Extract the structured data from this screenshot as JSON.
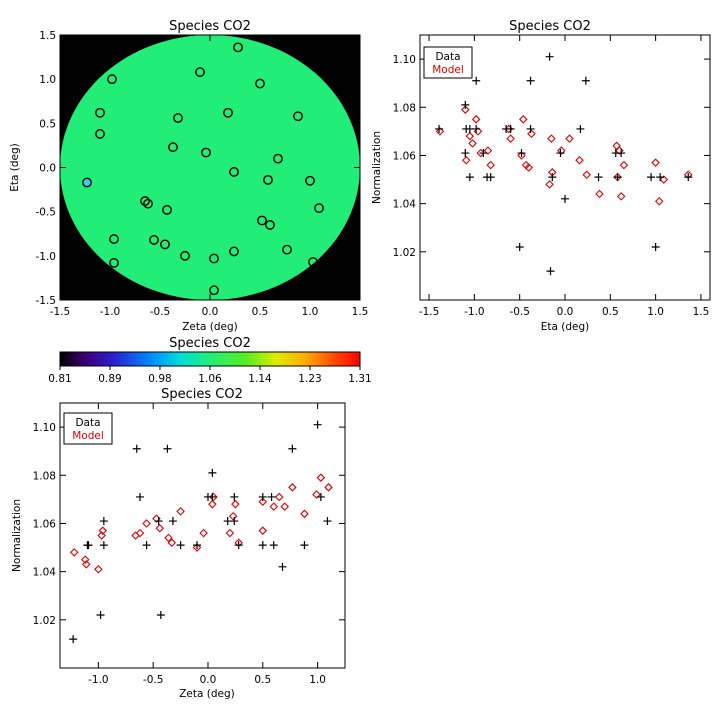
{
  "colors": {
    "data_marker": "#000000",
    "model_marker": "#dd0000",
    "disk_fill": "#22ee77",
    "background_mask": "#000000",
    "axes": "#000000",
    "cold_marker": "#33ccff"
  },
  "map_plot": {
    "title": "Species CO2",
    "xlabel": "Zeta (deg)",
    "ylabel": "Eta (deg)",
    "xlim": [
      -1.5,
      1.5
    ],
    "ylim": [
      -1.5,
      1.5
    ],
    "xticks": [
      "-1.5",
      "-1.0",
      "-0.5",
      "0.0",
      "0.5",
      "1.0",
      "1.5"
    ],
    "yticks": [
      "-1.5",
      "-1.0",
      "-0.5",
      "0.0",
      "0.5",
      "1.0",
      "1.5"
    ],
    "disk_radius_deg": 1.5
  },
  "colorbar": {
    "title": "Species CO2",
    "ticks": [
      "0.81",
      "0.89",
      "0.98",
      "1.06",
      "1.14",
      "1.23",
      "1.31"
    ],
    "range": [
      0.81,
      1.31
    ]
  },
  "legend": {
    "data": "Data",
    "model": "Model"
  },
  "eta_plot": {
    "title": "Species CO2",
    "xlabel": "Eta (deg)",
    "ylabel": "Normalization",
    "xlim": [
      -1.6,
      1.6
    ],
    "ylim": [
      1.0,
      1.11
    ],
    "xticks": [
      "-1.5",
      "-1.0",
      "-0.5",
      "0.0",
      "0.5",
      "1.0",
      "1.5"
    ],
    "yticks": [
      "1.02",
      "1.04",
      "1.06",
      "1.08",
      "1.10"
    ]
  },
  "zeta_plot": {
    "title": "Species CO2",
    "xlabel": "Zeta (deg)",
    "ylabel": "Normalization",
    "xlim": [
      -1.35,
      1.25
    ],
    "ylim": [
      1.0,
      1.11
    ],
    "xticks": [
      "-1.0",
      "-0.5",
      "0.0",
      "0.5",
      "1.0"
    ],
    "yticks": [
      "1.02",
      "1.04",
      "1.06",
      "1.08",
      "1.10"
    ]
  },
  "chart_data": [
    {
      "type": "scatter",
      "title": "Species CO2",
      "xlabel": "Zeta (deg)",
      "ylabel": "Eta (deg)",
      "xlim": [
        -1.5,
        1.5
      ],
      "ylim": [
        -1.5,
        1.5
      ],
      "points": [
        {
          "x": 0.28,
          "y": 1.36,
          "c": 1.06
        },
        {
          "x": -0.1,
          "y": 1.08,
          "c": 1.06
        },
        {
          "x": -0.98,
          "y": 1.0,
          "c": 1.06
        },
        {
          "x": 0.5,
          "y": 0.95,
          "c": 1.06
        },
        {
          "x": -1.1,
          "y": 0.62,
          "c": 1.06
        },
        {
          "x": 0.18,
          "y": 0.62,
          "c": 1.06
        },
        {
          "x": -0.32,
          "y": 0.56,
          "c": 1.06
        },
        {
          "x": 0.88,
          "y": 0.58,
          "c": 1.06
        },
        {
          "x": -1.1,
          "y": 0.38,
          "c": 1.06
        },
        {
          "x": -0.37,
          "y": 0.23,
          "c": 1.06
        },
        {
          "x": -0.04,
          "y": 0.17,
          "c": 1.06
        },
        {
          "x": 0.68,
          "y": 0.1,
          "c": 1.06
        },
        {
          "x": -1.23,
          "y": -0.17,
          "c": 0.98
        },
        {
          "x": 0.24,
          "y": -0.05,
          "c": 1.06
        },
        {
          "x": 0.58,
          "y": -0.14,
          "c": 1.06
        },
        {
          "x": 1.0,
          "y": -0.15,
          "c": 1.06
        },
        {
          "x": -0.65,
          "y": -0.38,
          "c": 1.06
        },
        {
          "x": -0.62,
          "y": -0.41,
          "c": 1.06
        },
        {
          "x": -0.43,
          "y": -0.48,
          "c": 1.06
        },
        {
          "x": 1.09,
          "y": -0.46,
          "c": 1.06
        },
        {
          "x": 0.52,
          "y": -0.6,
          "c": 1.06
        },
        {
          "x": 0.6,
          "y": -0.65,
          "c": 1.06
        },
        {
          "x": -0.96,
          "y": -0.81,
          "c": 1.06
        },
        {
          "x": -0.56,
          "y": -0.82,
          "c": 1.06
        },
        {
          "x": -0.45,
          "y": -0.87,
          "c": 1.06
        },
        {
          "x": 0.24,
          "y": -0.95,
          "c": 1.06
        },
        {
          "x": 0.77,
          "y": -0.93,
          "c": 1.06
        },
        {
          "x": -0.25,
          "y": -1.0,
          "c": 1.06
        },
        {
          "x": 0.04,
          "y": -1.03,
          "c": 1.06
        },
        {
          "x": -0.96,
          "y": -1.08,
          "c": 1.06
        },
        {
          "x": 1.03,
          "y": -1.07,
          "c": 1.06
        },
        {
          "x": 0.04,
          "y": -1.39,
          "c": 1.06
        }
      ]
    },
    {
      "type": "scatter",
      "title": "Species CO2",
      "xlabel": "Eta (deg)",
      "ylabel": "Normalization",
      "xlim": [
        -1.6,
        1.6
      ],
      "ylim": [
        1.0,
        1.11
      ],
      "series": [
        {
          "name": "Data",
          "points": [
            [
              -1.39,
              1.071
            ],
            [
              -1.1,
              1.081
            ],
            [
              -1.09,
              1.071
            ],
            [
              -1.1,
              1.061
            ],
            [
              -1.05,
              1.051
            ],
            [
              -1.05,
              1.071
            ],
            [
              -0.98,
              1.091
            ],
            [
              -0.98,
              1.071
            ],
            [
              -0.9,
              1.061
            ],
            [
              -0.86,
              1.051
            ],
            [
              -0.82,
              1.051
            ],
            [
              -0.65,
              1.071
            ],
            [
              -0.6,
              1.071
            ],
            [
              -0.5,
              1.022
            ],
            [
              -0.48,
              1.061
            ],
            [
              -0.38,
              1.091
            ],
            [
              -0.38,
              1.071
            ],
            [
              -0.17,
              1.101
            ],
            [
              -0.16,
              1.012
            ],
            [
              -0.14,
              1.051
            ],
            [
              -0.05,
              1.061
            ],
            [
              0.0,
              1.042
            ],
            [
              0.17,
              1.071
            ],
            [
              0.23,
              1.091
            ],
            [
              0.37,
              1.051
            ],
            [
              0.56,
              1.061
            ],
            [
              0.62,
              1.061
            ],
            [
              0.58,
              1.051
            ],
            [
              0.95,
              1.051
            ],
            [
              1.0,
              1.022
            ],
            [
              1.05,
              1.051
            ],
            [
              1.36,
              1.051
            ]
          ]
        },
        {
          "name": "Model",
          "points": [
            [
              -1.38,
              1.07
            ],
            [
              -1.1,
              1.079
            ],
            [
              -1.09,
              1.058
            ],
            [
              -1.05,
              1.068
            ],
            [
              -1.02,
              1.065
            ],
            [
              -0.98,
              1.075
            ],
            [
              -0.96,
              1.07
            ],
            [
              -0.93,
              1.061
            ],
            [
              -0.85,
              1.062
            ],
            [
              -0.82,
              1.056
            ],
            [
              -0.62,
              1.071
            ],
            [
              -0.6,
              1.067
            ],
            [
              -0.48,
              1.06
            ],
            [
              -0.46,
              1.075
            ],
            [
              -0.43,
              1.056
            ],
            [
              -0.4,
              1.055
            ],
            [
              -0.37,
              1.069
            ],
            [
              -0.17,
              1.048
            ],
            [
              -0.15,
              1.067
            ],
            [
              -0.14,
              1.053
            ],
            [
              -0.04,
              1.062
            ],
            [
              0.05,
              1.067
            ],
            [
              0.16,
              1.058
            ],
            [
              0.24,
              1.052
            ],
            [
              0.38,
              1.044
            ],
            [
              0.57,
              1.064
            ],
            [
              0.58,
              1.051
            ],
            [
              0.6,
              1.062
            ],
            [
              0.62,
              1.043
            ],
            [
              0.65,
              1.056
            ],
            [
              1.0,
              1.057
            ],
            [
              1.04,
              1.041
            ],
            [
              1.09,
              1.05
            ],
            [
              1.36,
              1.052
            ]
          ]
        }
      ]
    },
    {
      "type": "scatter",
      "title": "Species CO2",
      "xlabel": "Zeta (deg)",
      "ylabel": "Normalization",
      "xlim": [
        -1.35,
        1.25
      ],
      "ylim": [
        1.0,
        1.11
      ],
      "series": [
        {
          "name": "Data",
          "points": [
            [
              -1.23,
              1.012
            ],
            [
              -1.1,
              1.051
            ],
            [
              -1.09,
              1.051
            ],
            [
              -0.98,
              1.022
            ],
            [
              -0.95,
              1.051
            ],
            [
              -0.95,
              1.061
            ],
            [
              -0.65,
              1.091
            ],
            [
              -0.62,
              1.071
            ],
            [
              -0.56,
              1.051
            ],
            [
              -0.45,
              1.061
            ],
            [
              -0.43,
              1.022
            ],
            [
              -0.37,
              1.091
            ],
            [
              -0.32,
              1.061
            ],
            [
              -0.25,
              1.051
            ],
            [
              -0.1,
              1.051
            ],
            [
              0.0,
              1.071
            ],
            [
              0.04,
              1.081
            ],
            [
              0.04,
              1.071
            ],
            [
              0.18,
              1.061
            ],
            [
              0.24,
              1.061
            ],
            [
              0.24,
              1.071
            ],
            [
              0.28,
              1.051
            ],
            [
              0.5,
              1.051
            ],
            [
              0.5,
              1.071
            ],
            [
              0.58,
              1.071
            ],
            [
              0.6,
              1.051
            ],
            [
              0.68,
              1.042
            ],
            [
              0.77,
              1.091
            ],
            [
              0.88,
              1.051
            ],
            [
              1.0,
              1.101
            ],
            [
              1.03,
              1.071
            ],
            [
              1.09,
              1.061
            ]
          ]
        },
        {
          "name": "Model",
          "points": [
            [
              -1.22,
              1.048
            ],
            [
              -1.12,
              1.045
            ],
            [
              -1.11,
              1.043
            ],
            [
              -1.0,
              1.041
            ],
            [
              -0.97,
              1.055
            ],
            [
              -0.96,
              1.057
            ],
            [
              -0.66,
              1.055
            ],
            [
              -0.62,
              1.056
            ],
            [
              -0.56,
              1.06
            ],
            [
              -0.47,
              1.062
            ],
            [
              -0.44,
              1.058
            ],
            [
              -0.36,
              1.054
            ],
            [
              -0.33,
              1.052
            ],
            [
              -0.25,
              1.065
            ],
            [
              -0.1,
              1.05
            ],
            [
              -0.04,
              1.056
            ],
            [
              0.04,
              1.068
            ],
            [
              0.05,
              1.071
            ],
            [
              0.2,
              1.056
            ],
            [
              0.23,
              1.063
            ],
            [
              0.25,
              1.068
            ],
            [
              0.28,
              1.052
            ],
            [
              0.5,
              1.057
            ],
            [
              0.5,
              1.069
            ],
            [
              0.6,
              1.067
            ],
            [
              0.65,
              1.071
            ],
            [
              0.7,
              1.067
            ],
            [
              0.77,
              1.075
            ],
            [
              0.88,
              1.064
            ],
            [
              0.99,
              1.072
            ],
            [
              1.03,
              1.079
            ],
            [
              1.1,
              1.075
            ]
          ]
        }
      ]
    }
  ]
}
